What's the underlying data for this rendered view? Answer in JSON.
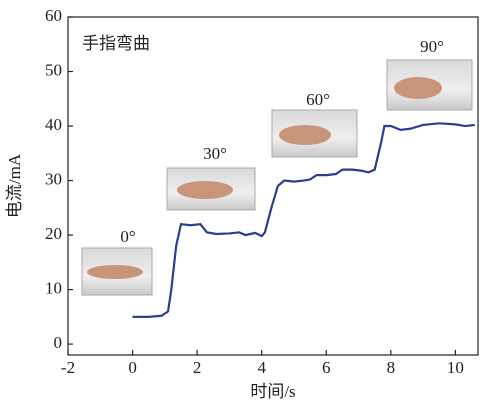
{
  "chart_data": {
    "type": "line",
    "annotation": "手指弯曲",
    "xlabel": "时间/s",
    "ylabel": "电流/mA",
    "angle_labels": [
      "0°",
      "30°",
      "60°",
      "90°"
    ],
    "xlim": [
      -2,
      10.7
    ],
    "xticks": [
      -2,
      0,
      2,
      4,
      6,
      8,
      10
    ],
    "ylim": [
      -2,
      60
    ],
    "yticks": [
      0,
      10,
      20,
      30,
      40,
      50,
      60
    ],
    "series": [
      {
        "color": "#2a3f8f",
        "x": [
          0,
          0.5,
          0.9,
          1.1,
          1.2,
          1.35,
          1.5,
          1.8,
          2.1,
          2.3,
          2.6,
          3.0,
          3.3,
          3.5,
          3.8,
          4.0,
          4.1,
          4.3,
          4.5,
          4.7,
          5.0,
          5.3,
          5.5,
          5.7,
          6.0,
          6.3,
          6.5,
          6.8,
          7.1,
          7.3,
          7.5,
          7.7,
          7.8,
          8.0,
          8.3,
          8.6,
          9.0,
          9.5,
          10.0,
          10.3,
          10.6
        ],
        "values": [
          5,
          5,
          5.2,
          6,
          10,
          18,
          22,
          21.8,
          22,
          20.5,
          20.2,
          20.3,
          20.5,
          20,
          20.4,
          19.8,
          20.5,
          25,
          29,
          30,
          29.8,
          30,
          30.2,
          31,
          31,
          31.2,
          32,
          32,
          31.8,
          31.5,
          32,
          37,
          40,
          40,
          39.3,
          39.5,
          40.2,
          40.5,
          40.3,
          40,
          40.2
        ]
      }
    ]
  }
}
